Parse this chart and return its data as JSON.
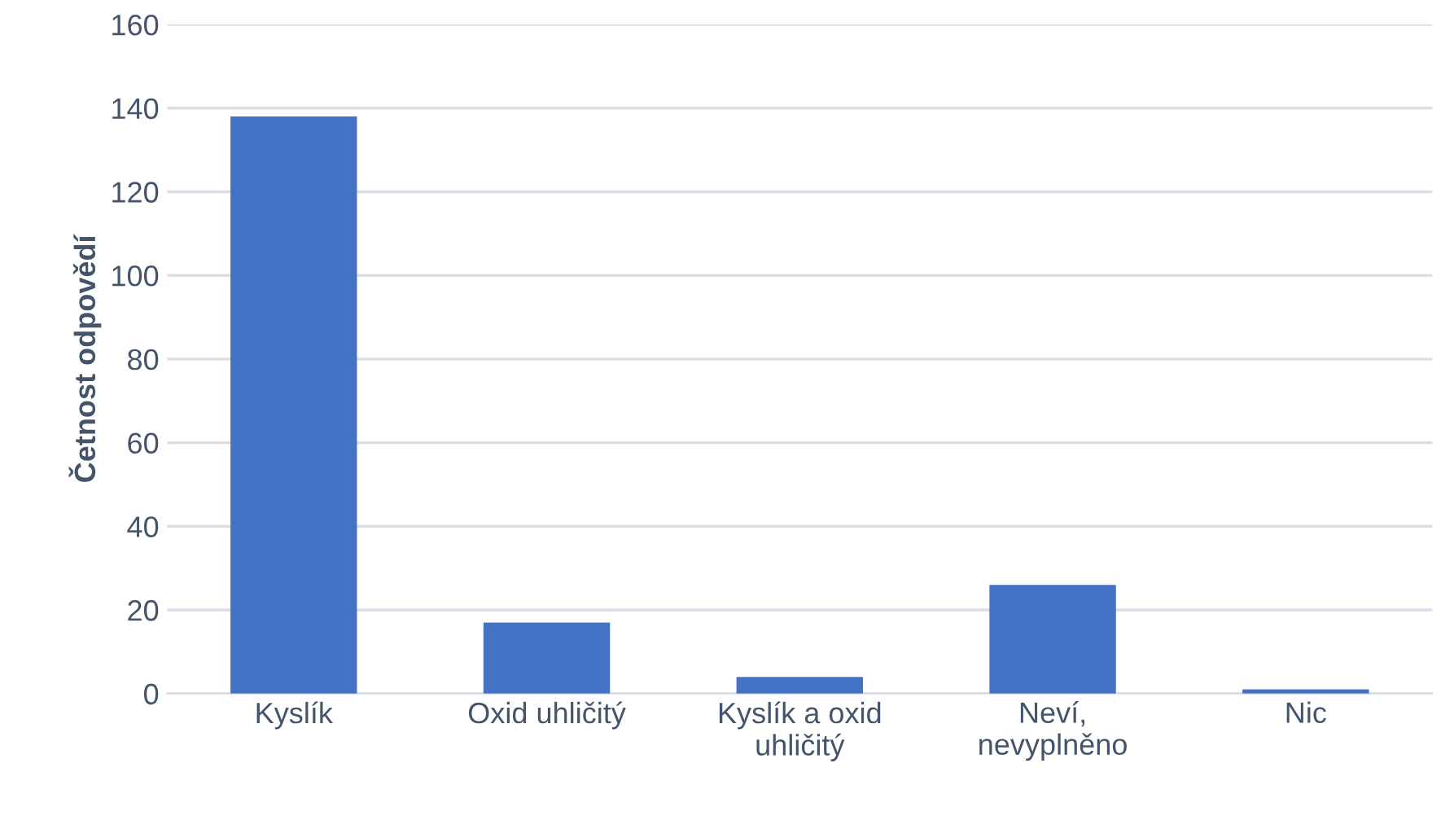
{
  "chart_data": {
    "type": "bar",
    "ylabel": "Četnost odpovědí",
    "categories": [
      "Kyslík",
      "Oxid uhličitý",
      "Kyslík a oxid uhličitý",
      "Neví, nevyplněno",
      "Nic"
    ],
    "values": [
      138,
      17,
      4,
      26,
      1
    ],
    "color": "#4472c4",
    "ylim": [
      0,
      160
    ],
    "yticks": [
      0,
      20,
      40,
      60,
      80,
      100,
      120,
      140,
      160
    ],
    "grid": "y"
  }
}
